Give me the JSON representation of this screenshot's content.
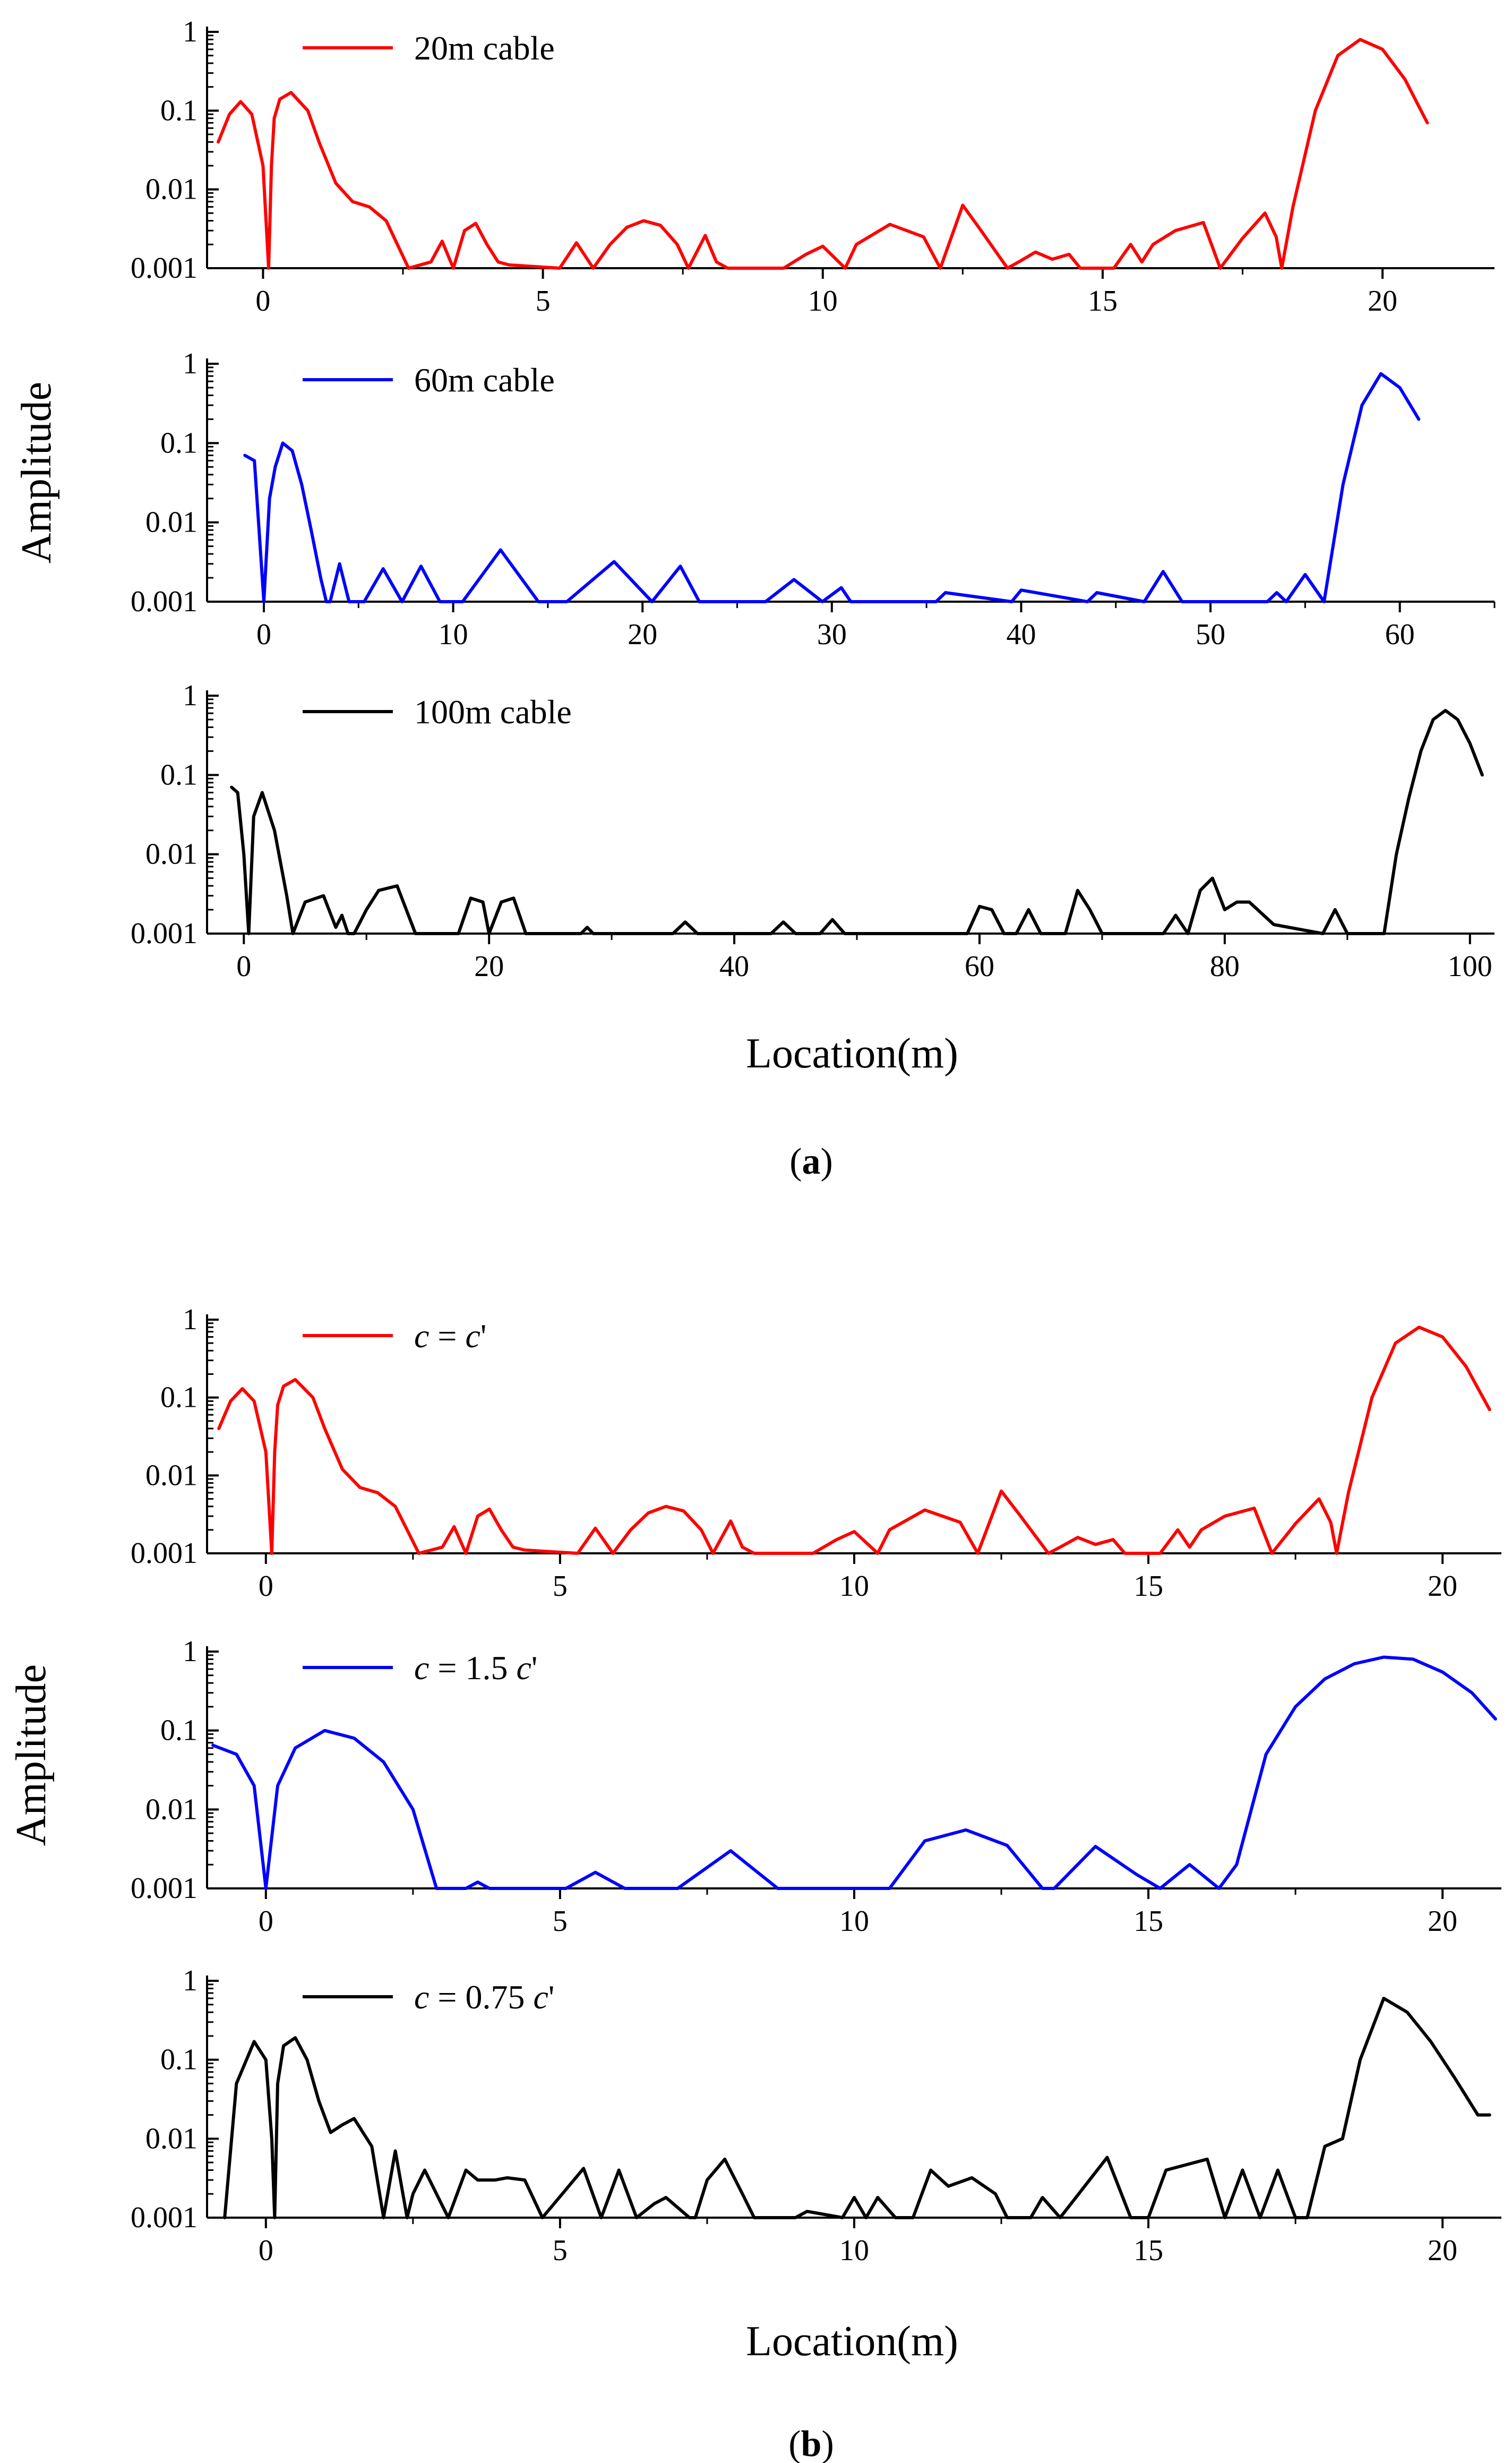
{
  "panels": [
    {
      "caption_letter": "a",
      "ylabel": "Amplitude",
      "xlabel": "Location(m)"
    },
    {
      "caption_letter": "b",
      "ylabel": "Amplitude",
      "xlabel": "Location(m)"
    }
  ],
  "chart_data": [
    {
      "type": "line",
      "panel": "a",
      "legend": "20m cable",
      "color": "#ff0000",
      "yscale": "log",
      "ylim": [
        0.001,
        1
      ],
      "yticks": [
        "1",
        "0.1",
        "0.01",
        "0.001"
      ],
      "xlim": [
        -1,
        22
      ],
      "xticks": [
        0,
        5,
        10,
        15,
        20
      ],
      "x": [
        -0.8,
        -0.6,
        -0.4,
        -0.2,
        0,
        0.1,
        0.15,
        0.2,
        0.3,
        0.5,
        0.8,
        1.0,
        1.3,
        1.6,
        1.9,
        2.2,
        2.4,
        2.6,
        3.0,
        3.2,
        3.4,
        3.6,
        3.8,
        4.0,
        4.2,
        4.4,
        5.3,
        5.6,
        5.9,
        6.2,
        6.5,
        6.8,
        7.1,
        7.4,
        7.6,
        7.9,
        8.1,
        8.3,
        9.3,
        9.7,
        10.0,
        10.4,
        10.6,
        11.2,
        11.8,
        12.1,
        12.5,
        12.8,
        13.3,
        13.5,
        13.8,
        14.1,
        14.4,
        14.6,
        15.2,
        15.5,
        15.7,
        15.9,
        16.3,
        16.8,
        17.1,
        17.5,
        17.9,
        18.1,
        18.2,
        18.4,
        18.8,
        19.2,
        19.6,
        20.0,
        20.4,
        20.8
      ],
      "values": [
        0.04,
        0.09,
        0.13,
        0.09,
        0.02,
        0.001,
        0.02,
        0.08,
        0.14,
        0.17,
        0.1,
        0.04,
        0.012,
        0.007,
        0.006,
        0.004,
        0.002,
        0.001,
        0.0012,
        0.0022,
        0.001,
        0.003,
        0.0037,
        0.002,
        0.0012,
        0.0011,
        0.001,
        0.0021,
        0.001,
        0.002,
        0.0033,
        0.004,
        0.0035,
        0.002,
        0.001,
        0.0026,
        0.0012,
        0.001,
        0.001,
        0.0015,
        0.0019,
        0.001,
        0.002,
        0.0036,
        0.0025,
        0.001,
        0.0063,
        0.0032,
        0.001,
        0.0012,
        0.0016,
        0.0013,
        0.0015,
        0.001,
        0.001,
        0.002,
        0.0012,
        0.002,
        0.003,
        0.0038,
        0.001,
        0.0024,
        0.005,
        0.0025,
        0.001,
        0.006,
        0.1,
        0.5,
        0.8,
        0.6,
        0.25,
        0.07
      ]
    },
    {
      "type": "line",
      "panel": "a",
      "legend": "60m cable",
      "color": "#0000ff",
      "yscale": "log",
      "ylim": [
        0.001,
        1
      ],
      "yticks": [
        "1",
        "0.1",
        "0.01",
        "0.001"
      ],
      "xlim": [
        -3,
        65
      ],
      "xticks": [
        0,
        10,
        20,
        30,
        40,
        50,
        60
      ],
      "x": [
        -1,
        -0.5,
        0,
        0.3,
        0.6,
        1,
        1.5,
        2,
        2.5,
        3,
        3.3,
        3.5,
        4,
        4.5,
        5.3,
        6.3,
        7.3,
        8.3,
        9.3,
        10.5,
        12.5,
        14.5,
        16,
        18.5,
        20.5,
        22,
        23,
        26.5,
        28,
        29.5,
        30.5,
        31,
        35.5,
        36,
        39.5,
        40,
        43.5,
        44,
        46.5,
        47.5,
        48.5,
        53,
        53.5,
        54,
        55,
        56,
        57,
        58,
        59,
        60,
        61
      ],
      "values": [
        0.07,
        0.06,
        0.001,
        0.02,
        0.05,
        0.1,
        0.08,
        0.03,
        0.008,
        0.002,
        0.001,
        0.001,
        0.003,
        0.001,
        0.001,
        0.0026,
        0.001,
        0.0028,
        0.001,
        0.001,
        0.0045,
        0.001,
        0.001,
        0.0032,
        0.001,
        0.0028,
        0.001,
        0.001,
        0.0019,
        0.001,
        0.0015,
        0.001,
        0.001,
        0.0013,
        0.001,
        0.0014,
        0.001,
        0.0013,
        0.001,
        0.0024,
        0.001,
        0.001,
        0.0013,
        0.001,
        0.0022,
        0.001,
        0.03,
        0.3,
        0.75,
        0.5,
        0.2
      ]
    },
    {
      "type": "line",
      "panel": "a",
      "legend": "100m cable",
      "color": "#000000",
      "yscale": "log",
      "ylim": [
        0.001,
        1
      ],
      "yticks": [
        "1",
        "0.1",
        "0.01",
        "0.001"
      ],
      "xlim": [
        -3,
        102
      ],
      "xticks": [
        0,
        20,
        40,
        60,
        80,
        100
      ],
      "x": [
        -1,
        -0.5,
        0,
        0.4,
        0.8,
        1.5,
        2.5,
        3.5,
        4,
        5,
        6.5,
        7.5,
        8,
        8.5,
        9,
        10,
        11,
        12.5,
        14,
        17.5,
        18.5,
        19.5,
        20,
        21,
        22,
        23,
        27.5,
        28,
        28.5,
        35,
        36,
        37,
        43,
        44,
        45,
        47,
        48,
        49,
        53,
        59,
        60,
        61,
        62,
        63,
        64,
        65,
        67,
        68,
        69,
        70,
        75,
        76,
        77,
        78,
        79,
        80,
        81,
        82,
        84,
        88,
        89,
        90,
        93,
        94,
        95,
        96,
        97,
        98,
        99,
        100,
        101
      ],
      "values": [
        0.07,
        0.06,
        0.01,
        0.001,
        0.03,
        0.06,
        0.02,
        0.003,
        0.001,
        0.0025,
        0.003,
        0.0012,
        0.0017,
        0.001,
        0.001,
        0.002,
        0.0035,
        0.004,
        0.001,
        0.001,
        0.0028,
        0.0025,
        0.001,
        0.0025,
        0.0028,
        0.001,
        0.001,
        0.0012,
        0.001,
        0.001,
        0.0014,
        0.001,
        0.001,
        0.0014,
        0.001,
        0.001,
        0.0015,
        0.001,
        0.001,
        0.001,
        0.0022,
        0.002,
        0.001,
        0.001,
        0.002,
        0.001,
        0.001,
        0.0035,
        0.002,
        0.001,
        0.001,
        0.0017,
        0.001,
        0.0035,
        0.005,
        0.002,
        0.0025,
        0.0025,
        0.0013,
        0.001,
        0.002,
        0.001,
        0.001,
        0.01,
        0.05,
        0.2,
        0.5,
        0.65,
        0.5,
        0.25,
        0.1
      ]
    },
    {
      "type": "line",
      "panel": "b",
      "legend": "c = c'",
      "color": "#ff0000",
      "yscale": "log",
      "ylim": [
        0.001,
        1
      ],
      "yticks": [
        "1",
        "0.1",
        "0.01",
        "0.001"
      ],
      "xlim": [
        -1,
        21
      ],
      "xticks": [
        0,
        5,
        10,
        15,
        20
      ],
      "x": [
        -0.8,
        -0.6,
        -0.4,
        -0.2,
        0,
        0.1,
        0.15,
        0.2,
        0.3,
        0.5,
        0.8,
        1.0,
        1.3,
        1.6,
        1.9,
        2.2,
        2.4,
        2.6,
        3.0,
        3.2,
        3.4,
        3.6,
        3.8,
        4.0,
        4.2,
        4.4,
        5.3,
        5.6,
        5.9,
        6.2,
        6.5,
        6.8,
        7.1,
        7.4,
        7.6,
        7.9,
        8.1,
        8.3,
        9.3,
        9.7,
        10.0,
        10.4,
        10.6,
        11.2,
        11.8,
        12.1,
        12.5,
        12.8,
        13.3,
        13.5,
        13.8,
        14.1,
        14.4,
        14.6,
        15.2,
        15.5,
        15.7,
        15.9,
        16.3,
        16.8,
        17.1,
        17.5,
        17.9,
        18.1,
        18.2,
        18.4,
        18.8,
        19.2,
        19.6,
        20.0,
        20.4,
        20.8
      ],
      "values": [
        0.04,
        0.09,
        0.13,
        0.09,
        0.02,
        0.001,
        0.02,
        0.08,
        0.14,
        0.17,
        0.1,
        0.04,
        0.012,
        0.007,
        0.006,
        0.004,
        0.002,
        0.001,
        0.0012,
        0.0022,
        0.001,
        0.003,
        0.0037,
        0.002,
        0.0012,
        0.0011,
        0.001,
        0.0021,
        0.001,
        0.002,
        0.0033,
        0.004,
        0.0035,
        0.002,
        0.001,
        0.0026,
        0.0012,
        0.001,
        0.001,
        0.0015,
        0.0019,
        0.001,
        0.002,
        0.0036,
        0.0025,
        0.001,
        0.0063,
        0.0032,
        0.001,
        0.0012,
        0.0016,
        0.0013,
        0.0015,
        0.001,
        0.001,
        0.002,
        0.0012,
        0.002,
        0.003,
        0.0038,
        0.001,
        0.0024,
        0.005,
        0.0025,
        0.001,
        0.006,
        0.1,
        0.5,
        0.8,
        0.6,
        0.25,
        0.07
      ]
    },
    {
      "type": "line",
      "panel": "b",
      "legend": "c = 1.5 c'",
      "color": "#0000ff",
      "yscale": "log",
      "ylim": [
        0.001,
        1
      ],
      "yticks": [
        "1",
        "0.1",
        "0.01",
        "0.001"
      ],
      "xlim": [
        -1,
        21
      ],
      "xticks": [
        0,
        5,
        10,
        15,
        20
      ],
      "x": [
        -0.9,
        -0.5,
        -0.2,
        0,
        0.2,
        0.5,
        1,
        1.5,
        2,
        2.5,
        2.9,
        3.4,
        3.6,
        3.8,
        5.1,
        5.6,
        6.1,
        7.0,
        7.9,
        8.7,
        10.6,
        11.2,
        11.9,
        12.6,
        13.2,
        13.4,
        14.1,
        14.8,
        15.2,
        15.7,
        16.2,
        16.5,
        17,
        17.5,
        18,
        18.5,
        19,
        19.5,
        20,
        20.5,
        20.9
      ],
      "values": [
        0.065,
        0.05,
        0.02,
        0.001,
        0.02,
        0.06,
        0.1,
        0.08,
        0.04,
        0.01,
        0.001,
        0.001,
        0.0012,
        0.001,
        0.001,
        0.0016,
        0.001,
        0.001,
        0.003,
        0.001,
        0.001,
        0.004,
        0.0055,
        0.0035,
        0.001,
        0.001,
        0.0034,
        0.0015,
        0.001,
        0.002,
        0.001,
        0.002,
        0.05,
        0.2,
        0.45,
        0.7,
        0.85,
        0.8,
        0.55,
        0.3,
        0.14
      ]
    },
    {
      "type": "line",
      "panel": "b",
      "legend": "c = 0.75 c'",
      "color": "#000000",
      "yscale": "log",
      "ylim": [
        0.001,
        1
      ],
      "yticks": [
        "1",
        "0.1",
        "0.01",
        "0.001"
      ],
      "xlim": [
        -1,
        21
      ],
      "xticks": [
        0,
        5,
        10,
        15,
        20
      ],
      "x": [
        -0.7,
        -0.5,
        -0.2,
        0,
        0.1,
        0.15,
        0.2,
        0.3,
        0.5,
        0.7,
        0.9,
        1.1,
        1.3,
        1.5,
        1.8,
        2.0,
        2.2,
        2.4,
        2.5,
        2.7,
        3.1,
        3.4,
        3.6,
        3.9,
        4.1,
        4.4,
        4.7,
        5.4,
        5.7,
        6.0,
        6.3,
        6.6,
        6.8,
        7.2,
        7.3,
        7.5,
        7.8,
        8.1,
        8.3,
        9.0,
        9.2,
        9.8,
        10.0,
        10.2,
        10.4,
        10.7,
        11.0,
        11.3,
        11.6,
        12.0,
        12.4,
        12.6,
        13.0,
        13.2,
        13.5,
        14.3,
        14.7,
        15.0,
        15.3,
        16.0,
        16.3,
        16.6,
        16.9,
        17.2,
        17.5,
        17.7,
        18.0,
        18.3,
        18.6,
        19.0,
        19.4,
        19.8,
        20.2,
        20.6,
        20.8
      ],
      "values": [
        0.001,
        0.05,
        0.17,
        0.1,
        0.01,
        0.001,
        0.05,
        0.15,
        0.19,
        0.1,
        0.03,
        0.012,
        0.015,
        0.018,
        0.008,
        0.001,
        0.007,
        0.001,
        0.002,
        0.004,
        0.001,
        0.004,
        0.003,
        0.003,
        0.0032,
        0.003,
        0.001,
        0.0042,
        0.001,
        0.004,
        0.001,
        0.0015,
        0.0018,
        0.001,
        0.001,
        0.003,
        0.0055,
        0.002,
        0.001,
        0.001,
        0.0012,
        0.001,
        0.0018,
        0.001,
        0.0018,
        0.001,
        0.001,
        0.004,
        0.0025,
        0.0032,
        0.002,
        0.001,
        0.001,
        0.0018,
        0.001,
        0.0058,
        0.001,
        0.001,
        0.004,
        0.0055,
        0.001,
        0.004,
        0.001,
        0.004,
        0.001,
        0.001,
        0.008,
        0.01,
        0.1,
        0.6,
        0.4,
        0.17,
        0.06,
        0.02,
        0.02
      ]
    }
  ]
}
